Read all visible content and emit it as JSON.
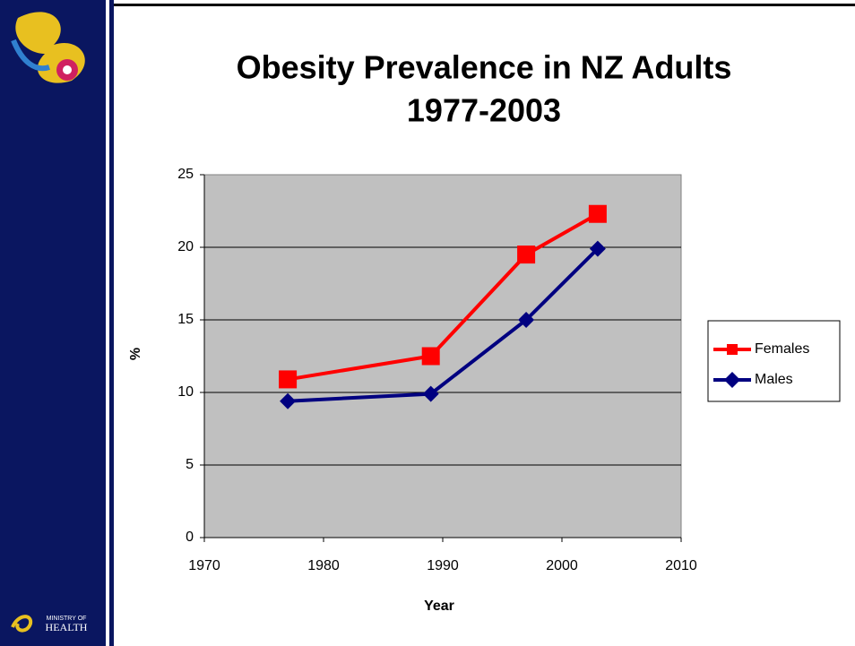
{
  "logo": {
    "line1": "MINISTRY OF",
    "line2": "HEALTH"
  },
  "chart_data": {
    "type": "line",
    "title": [
      "Obesity Prevalence in NZ Adults",
      "1977-2003"
    ],
    "x_label": "Year",
    "y_label": "%",
    "x": [
      1977,
      1989,
      1997,
      2003
    ],
    "series": [
      {
        "name": "Females",
        "color": "#ff0000",
        "marker": "square",
        "values": [
          10.9,
          12.5,
          19.5,
          22.3
        ]
      },
      {
        "name": "Males",
        "color": "#000080",
        "marker": "diamond",
        "values": [
          9.4,
          9.9,
          15.0,
          19.9
        ]
      }
    ],
    "xlim": [
      1970,
      2010
    ],
    "xticks": [
      1970,
      1980,
      1990,
      2000,
      2010
    ],
    "ylim": [
      0,
      25
    ],
    "yticks": [
      0,
      5,
      10,
      15,
      20,
      25
    ],
    "grid": true,
    "legend": "right"
  }
}
